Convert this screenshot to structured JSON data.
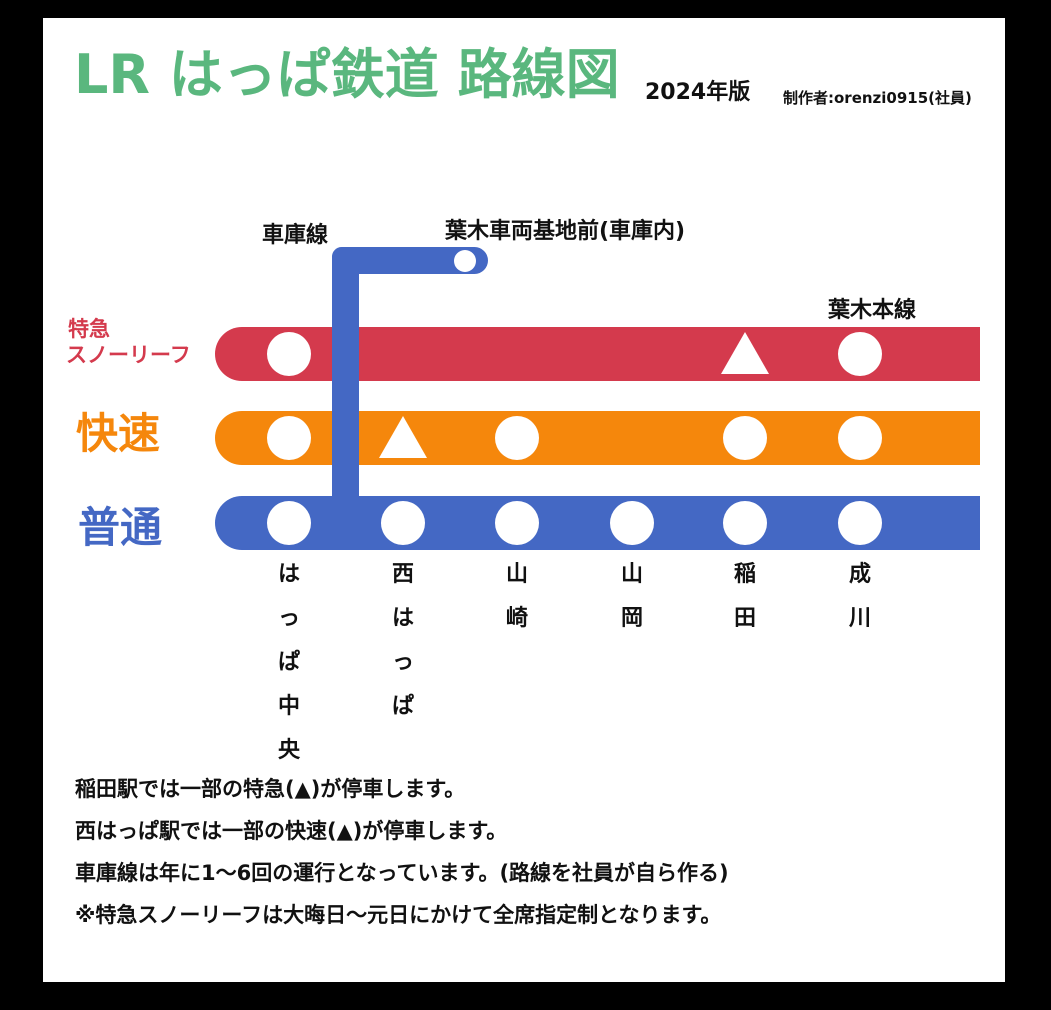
{
  "title": "LR はっぱ鉄道 路線図",
  "edition": "2024年版",
  "author": "制作者:orenzi0915(社員)",
  "colors": {
    "title": "#5ab77e",
    "limited_express": "#d43a4d",
    "rapid": "#f5870c",
    "local": "#4468c4"
  },
  "lines": {
    "limited_express": {
      "name_top": "特急",
      "name_bottom": "スノーリーフ"
    },
    "rapid": {
      "name": "快速"
    },
    "local": {
      "name": "普通"
    },
    "main_line": "葉木本線",
    "depot": {
      "name": "車庫線",
      "station": "葉木車両基地前(車庫内)"
    }
  },
  "stations": [
    {
      "name": "はっぱ中央",
      "stops": {
        "limited_express": "circle",
        "rapid": "circle",
        "local": "circle"
      }
    },
    {
      "name": "西はっぱ",
      "stops": {
        "rapid": "triangle",
        "local": "circle"
      }
    },
    {
      "name": "山崎",
      "stops": {
        "rapid": "circle",
        "local": "circle"
      }
    },
    {
      "name": "山岡",
      "stops": {
        "local": "circle"
      }
    },
    {
      "name": "稲田",
      "stops": {
        "limited_express": "triangle",
        "rapid": "circle",
        "local": "circle"
      }
    },
    {
      "name": "成川",
      "stops": {
        "limited_express": "circle",
        "rapid": "circle",
        "local": "circle"
      }
    }
  ],
  "notes": [
    "稲田駅では一部の特急(▲)が停車します。",
    "西はっぱ駅では一部の快速(▲)が停車します。",
    "車庫線は年に1〜6回の運行となっています。(路線を社員が自ら作る)",
    "※特急スノーリーフは大晦日〜元日にかけて全席指定制となります。"
  ]
}
